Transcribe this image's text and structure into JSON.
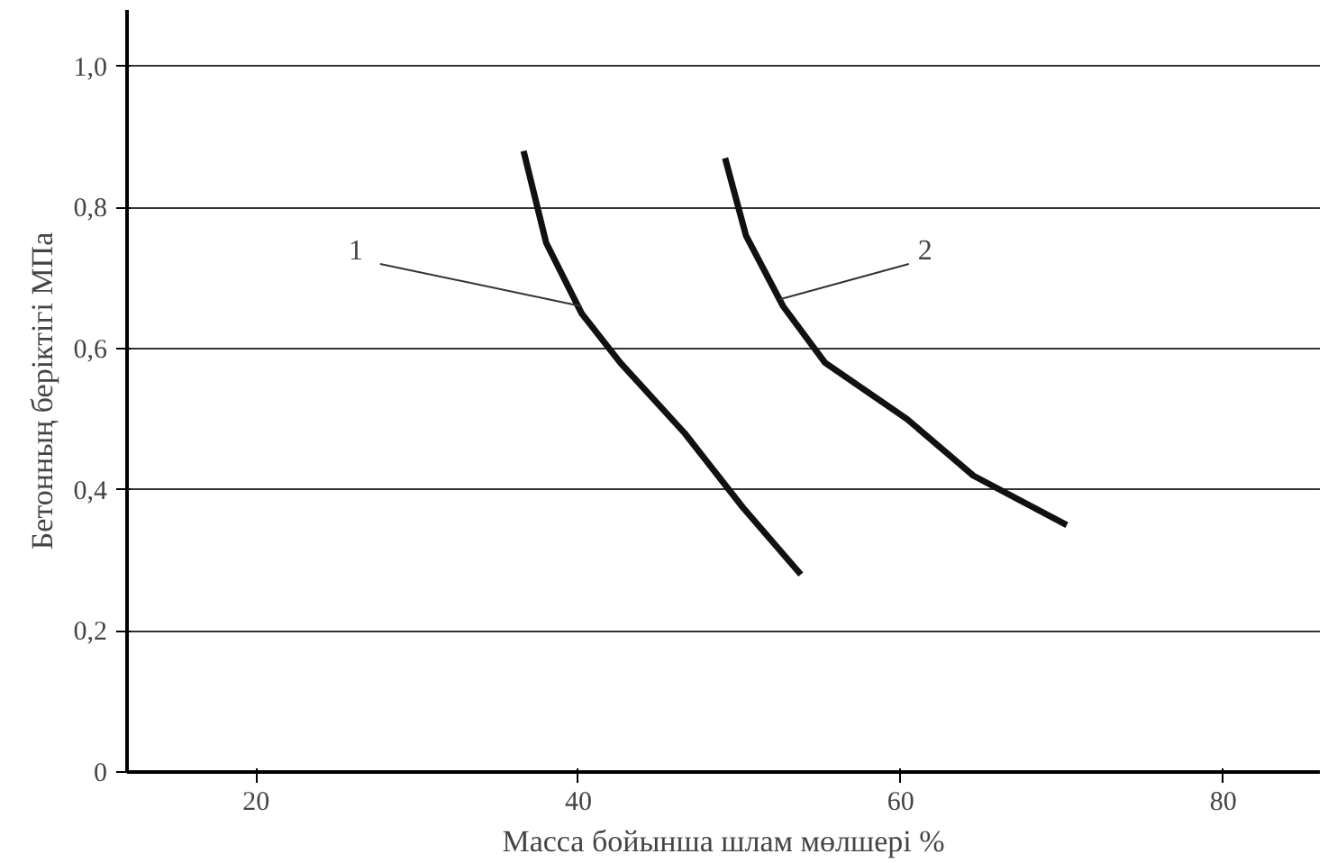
{
  "chart_data": {
    "type": "line",
    "xlabel": "Масса бойынша шлам мөлшері %",
    "ylabel": "Бетонның беріктігі МПа",
    "xlim": [
      12,
      86
    ],
    "ylim": [
      0,
      1.08
    ],
    "xticks": [
      20,
      40,
      60,
      80
    ],
    "yticks": [
      {
        "value": 0,
        "label": "0"
      },
      {
        "value": 0.2,
        "label": "0,2"
      },
      {
        "value": 0.4,
        "label": "0,4"
      },
      {
        "value": 0.6,
        "label": "0,6"
      },
      {
        "value": 0.8,
        "label": "0,8"
      },
      {
        "value": 1.0,
        "label": "1,0"
      }
    ],
    "grid": "y",
    "line_style": "solid",
    "marker": "none",
    "series": [
      {
        "color": "#111111",
        "x": [
          36.6,
          38.0,
          40.2,
          42.6,
          46.6,
          50.2,
          53.8
        ],
        "values": [
          0.88,
          0.75,
          0.65,
          0.58,
          0.48,
          0.375,
          0.28
        ]
      },
      {
        "color": "#111111",
        "x": [
          49.1,
          50.4,
          52.7,
          55.3,
          60.4,
          64.5,
          70.3
        ],
        "values": [
          0.87,
          0.76,
          0.66,
          0.58,
          0.5,
          0.42,
          0.35
        ]
      }
    ],
    "annotations": [
      {
        "text": "1",
        "x": 40.2,
        "y": 0.66
      },
      {
        "text": "2",
        "x": 52.5,
        "y": 0.67
      }
    ]
  }
}
